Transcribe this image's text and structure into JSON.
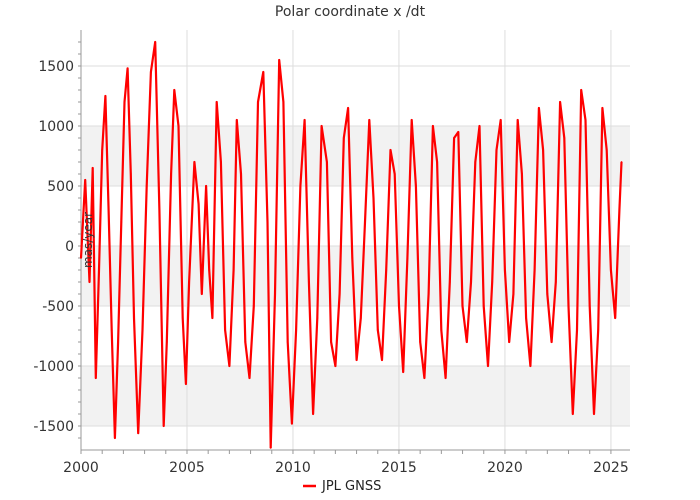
{
  "chart_data": {
    "type": "line",
    "title": "Polar coordinate x /dt",
    "ylabel": "mas/year",
    "xlim": [
      2000,
      2025.9
    ],
    "ylim": [
      -1700,
      1800
    ],
    "y_ticks": [
      -1500,
      -1000,
      -500,
      0,
      500,
      1000,
      1500
    ],
    "x_ticks": [
      2000,
      2005,
      2010,
      2015,
      2020,
      2025
    ],
    "y_tick_labels": [
      "-1500",
      "-1000",
      "-500",
      "0",
      "500",
      "1000",
      "1500"
    ],
    "x_tick_labels": [
      "2000",
      "2005",
      "2010",
      "2015",
      "2020",
      "2025"
    ],
    "grid": true,
    "banded_background": true,
    "legend_position": "bottom-center",
    "series": [
      {
        "name": "JPL GNSS",
        "color": "#ff0000",
        "x": [
          2000.0,
          2000.2,
          2000.4,
          2000.55,
          2000.7,
          2000.85,
          2001.0,
          2001.15,
          2001.3,
          2001.45,
          2001.6,
          2001.75,
          2001.9,
          2002.05,
          2002.2,
          2002.35,
          2002.5,
          2002.7,
          2002.9,
          2003.1,
          2003.3,
          2003.5,
          2003.7,
          2003.9,
          2004.05,
          2004.25,
          2004.4,
          2004.6,
          2004.8,
          2004.95,
          2005.1,
          2005.35,
          2005.55,
          2005.7,
          2005.9,
          2006.05,
          2006.2,
          2006.4,
          2006.6,
          2006.8,
          2007.0,
          2007.2,
          2007.35,
          2007.55,
          2007.75,
          2007.95,
          2008.15,
          2008.35,
          2008.6,
          2008.8,
          2008.95,
          2009.15,
          2009.35,
          2009.55,
          2009.75,
          2009.95,
          2010.15,
          2010.35,
          2010.55,
          2010.75,
          2010.95,
          2011.15,
          2011.35,
          2011.6,
          2011.8,
          2012.0,
          2012.2,
          2012.4,
          2012.6,
          2012.8,
          2013.0,
          2013.2,
          2013.4,
          2013.6,
          2013.8,
          2014.0,
          2014.2,
          2014.4,
          2014.6,
          2014.8,
          2015.0,
          2015.2,
          2015.4,
          2015.6,
          2015.8,
          2016.0,
          2016.2,
          2016.4,
          2016.6,
          2016.8,
          2017.0,
          2017.2,
          2017.4,
          2017.6,
          2017.8,
          2018.0,
          2018.2,
          2018.4,
          2018.6,
          2018.8,
          2019.0,
          2019.2,
          2019.4,
          2019.6,
          2019.8,
          2020.0,
          2020.2,
          2020.4,
          2020.6,
          2020.8,
          2021.0,
          2021.2,
          2021.4,
          2021.6,
          2021.8,
          2022.0,
          2022.2,
          2022.4,
          2022.6,
          2022.8,
          2023.0,
          2023.2,
          2023.4,
          2023.6,
          2023.8,
          2024.0,
          2024.2,
          2024.4,
          2024.6,
          2024.8,
          2025.0,
          2025.2,
          2025.4,
          2025.5
        ],
        "y": [
          -100,
          550,
          -300,
          650,
          -1100,
          -200,
          800,
          1250,
          300,
          -700,
          -1600,
          -800,
          200,
          1200,
          1480,
          600,
          -600,
          -1560,
          -700,
          500,
          1450,
          1700,
          300,
          -1500,
          -800,
          600,
          1300,
          1000,
          -600,
          -1150,
          -300,
          700,
          350,
          -400,
          500,
          -200,
          -600,
          1200,
          700,
          -700,
          -1000,
          -200,
          1050,
          600,
          -800,
          -1100,
          -500,
          1200,
          1450,
          200,
          -1680,
          -400,
          1550,
          1200,
          -800,
          -1480,
          -700,
          500,
          1050,
          -300,
          -1400,
          -600,
          1000,
          700,
          -800,
          -1000,
          -400,
          900,
          1150,
          -100,
          -950,
          -600,
          200,
          1050,
          400,
          -700,
          -950,
          -200,
          800,
          600,
          -500,
          -1050,
          -100,
          1050,
          500,
          -800,
          -1100,
          -400,
          1000,
          700,
          -700,
          -1100,
          -300,
          900,
          950,
          -500,
          -800,
          -300,
          700,
          1000,
          -500,
          -1000,
          -300,
          800,
          1050,
          -200,
          -800,
          -400,
          1050,
          600,
          -600,
          -1000,
          -200,
          1150,
          800,
          -400,
          -800,
          -300,
          1200,
          900,
          -500,
          -1400,
          -700,
          1300,
          1050,
          -500,
          -1400,
          -700,
          1150,
          800,
          -200,
          -600,
          300,
          700
        ]
      }
    ]
  }
}
